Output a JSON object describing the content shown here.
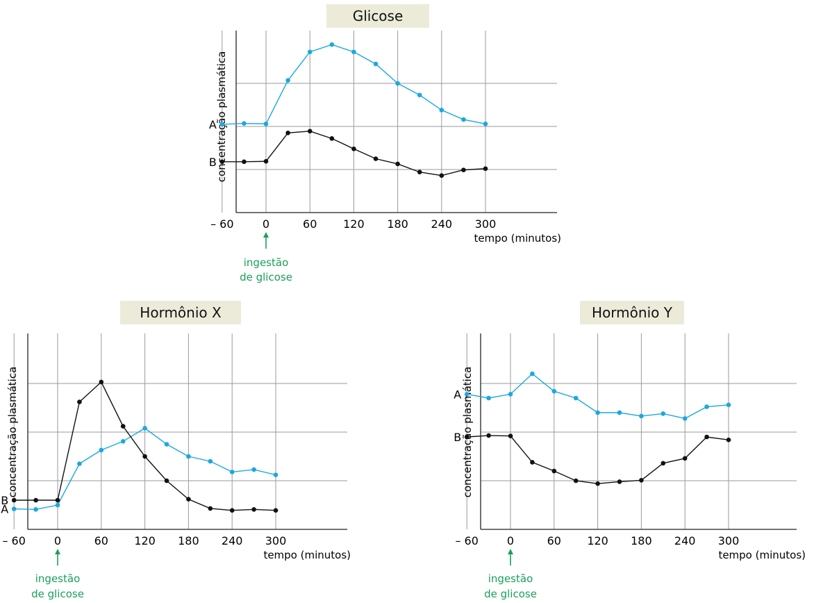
{
  "chart_data": [
    {
      "id": "glicose",
      "type": "line",
      "title": "Glicose",
      "ylabel": "concentração plasmática",
      "xlabel": "tempo (minutos)",
      "xticks": [
        -60,
        0,
        60,
        120,
        180,
        240,
        300
      ],
      "xtick_labels": [
        "– 60",
        "0",
        "60",
        "120",
        "180",
        "240",
        "300"
      ],
      "xlim": [
        -100,
        340
      ],
      "ylim": [
        0,
        4
      ],
      "grid": true,
      "annotation": {
        "x": 0,
        "line1": "ingestão",
        "line2": "de glicose"
      },
      "x": [
        -60,
        -30,
        0,
        30,
        60,
        90,
        120,
        150,
        180,
        210,
        240,
        270,
        300
      ],
      "series": [
        {
          "name": "A",
          "color": "#1ba8e0",
          "values": [
            2.05,
            2.07,
            2.06,
            3.07,
            3.73,
            3.9,
            3.73,
            3.45,
            3.0,
            2.73,
            2.38,
            2.16,
            2.06
          ]
        },
        {
          "name": "B",
          "color": "#111111",
          "values": [
            1.18,
            1.18,
            1.19,
            1.85,
            1.89,
            1.72,
            1.48,
            1.25,
            1.13,
            0.94,
            0.86,
            0.99,
            1.02
          ]
        }
      ]
    },
    {
      "id": "hormonio-x",
      "type": "line",
      "title": "Hormônio X",
      "ylabel": "concentração plasmática",
      "xlabel": "tempo (minutos)",
      "xticks": [
        -60,
        0,
        60,
        120,
        180,
        240,
        300
      ],
      "xtick_labels": [
        "– 60",
        "0",
        "60",
        "120",
        "180",
        "240",
        "300"
      ],
      "xlim": [
        -100,
        340
      ],
      "ylim": [
        0,
        4
      ],
      "grid": true,
      "annotation": {
        "x": 0,
        "line1": "ingestão",
        "line2": "de glicose"
      },
      "x": [
        -60,
        -30,
        0,
        30,
        60,
        90,
        120,
        150,
        180,
        210,
        240,
        270,
        300
      ],
      "series": [
        {
          "name": "A",
          "color": "#1ba8e0",
          "values": [
            0.42,
            0.41,
            0.5,
            1.35,
            1.63,
            1.81,
            2.08,
            1.75,
            1.5,
            1.4,
            1.18,
            1.23,
            1.12
          ]
        },
        {
          "name": "B",
          "color": "#111111",
          "values": [
            0.6,
            0.6,
            0.6,
            2.62,
            3.03,
            2.12,
            1.5,
            1.0,
            0.62,
            0.43,
            0.39,
            0.41,
            0.39
          ]
        }
      ]
    },
    {
      "id": "hormonio-y",
      "type": "line",
      "title": "Hormônio Y",
      "ylabel": "concentração plasmática",
      "xlabel": "tempo (minutos)",
      "xticks": [
        -60,
        0,
        60,
        120,
        180,
        240,
        300
      ],
      "xtick_labels": [
        "– 60",
        "0",
        "60",
        "120",
        "180",
        "240",
        "300"
      ],
      "xlim": [
        -100,
        340
      ],
      "ylim": [
        0,
        4
      ],
      "grid": true,
      "annotation": {
        "x": 0,
        "line1": "ingestão",
        "line2": "de glicose"
      },
      "x": [
        -60,
        -30,
        0,
        30,
        60,
        90,
        120,
        150,
        180,
        210,
        240,
        270,
        300
      ],
      "series": [
        {
          "name": "A",
          "color": "#1ba8e0",
          "values": [
            2.78,
            2.7,
            2.78,
            3.2,
            2.84,
            2.7,
            2.4,
            2.4,
            2.33,
            2.38,
            2.28,
            2.52,
            2.56
          ]
        },
        {
          "name": "B",
          "color": "#111111",
          "values": [
            1.9,
            1.93,
            1.92,
            1.38,
            1.2,
            1.0,
            0.94,
            0.98,
            1.01,
            1.36,
            1.46,
            1.9,
            1.84
          ]
        }
      ]
    }
  ]
}
